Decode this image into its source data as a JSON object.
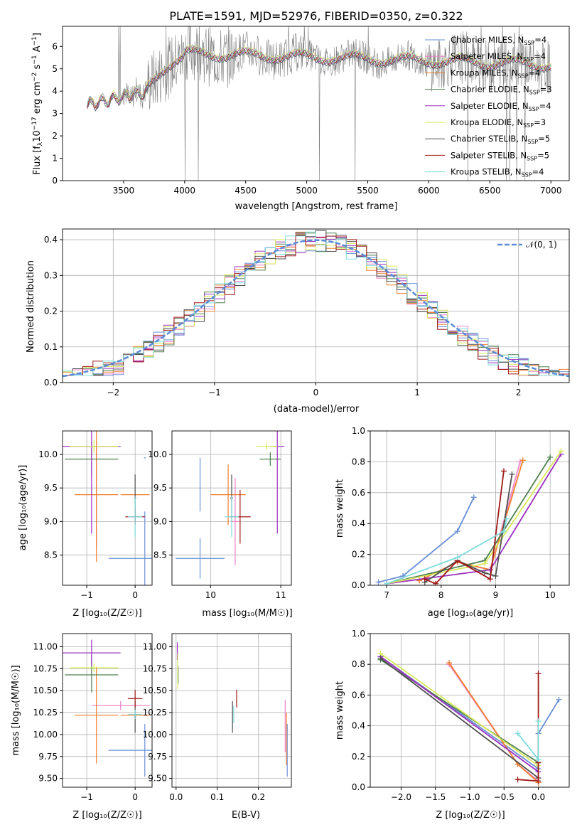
{
  "title": "PLATE=1591, MJD=52976, FIBERID=0350, z=0.322",
  "colors": {
    "Chabrier MILES": "#6a8fd6",
    "Salpeter MILES": "#ee82c8",
    "Kroupa MILES": "#f08030",
    "Chabrier ELODIE": "#4f7f4f",
    "Salpeter ELODIE": "#9b30c0",
    "Kroupa ELODIE": "#d8e85a",
    "Chabrier STELIB": "#505050",
    "Salpeter STELIB": "#a01818",
    "Kroupa STELIB": "#7fdcdc",
    "data": "#808080",
    "normal": "#5b8ad6"
  },
  "panels": {
    "spectrum": {
      "xlabel": "wavelength [Angstrom, rest frame]",
      "ylabel_pre": "Flux [f",
      "ylabel_sub": "λ",
      "ylabel_mid": "10",
      "ylabel_exp": "−17",
      "ylabel_post": " erg cm",
      "ylabel_exp2": "−2",
      "ylabel_s": " s",
      "ylabel_exp3": "−1",
      "ylabel_A": " A",
      "ylabel_exp4": "−1",
      "ylabel_end": "]",
      "legend": [
        {
          "imf": "Chabrier MILES",
          "n": "4"
        },
        {
          "imf": "Salpeter MILES",
          "n": "4"
        },
        {
          "imf": "Kroupa MILES",
          "n": "4"
        },
        {
          "imf": "Chabrier ELODIE",
          "n": "3"
        },
        {
          "imf": "Salpeter ELODIE",
          "n": "4"
        },
        {
          "imf": "Kroupa ELODIE",
          "n": "3"
        },
        {
          "imf": "Chabrier STELIB",
          "n": "5"
        },
        {
          "imf": "Salpeter STELIB",
          "n": "5"
        },
        {
          "imf": "Kroupa STELIB",
          "n": "4"
        }
      ],
      "legend_n_label": "N",
      "legend_n_sub": "SSP"
    },
    "residuals": {
      "xlabel": "(data-model)/error",
      "ylabel": "Normed distribution",
      "legend": "𝒩(0, 1)"
    },
    "age_vs_Z": {
      "xlabel": "Z [log₁₀(Z/Z☉)]",
      "ylabel": "age  [log₁₀(age/yr)]"
    },
    "age_vs_mass": {
      "xlabel": "mass [log₁₀(M/M☉)]"
    },
    "mw_vs_age": {
      "xlabel": "age  [log₁₀(age/yr)]",
      "ylabel": "mass weight"
    },
    "mass_vs_Z": {
      "xlabel": "Z [log₁₀(Z/Z☉)]",
      "ylabel": "mass [log₁₀(M/M☉)]"
    },
    "mass_vs_ebv": {
      "xlabel": "E(B-V)"
    },
    "mw_vs_Z": {
      "xlabel": "Z [log₁₀(Z/Z☉)]",
      "ylabel": "mass weight"
    }
  },
  "chart_data": [
    {
      "type": "line",
      "panel": "spectrum",
      "xlim": [
        3000,
        7150
      ],
      "ylim": [
        0,
        6.9
      ],
      "xticks": [
        3500,
        4000,
        4500,
        5000,
        5500,
        6000,
        6500,
        7000
      ],
      "yticks": [
        0,
        1,
        2,
        3,
        4,
        5,
        6
      ],
      "x_range_data": [
        3200,
        7000
      ],
      "grid": false,
      "legend_position": "right"
    },
    {
      "type": "line",
      "panel": "residuals",
      "xlim": [
        -2.5,
        2.5
      ],
      "ylim": [
        0,
        0.43
      ],
      "xticks": [
        -2,
        -1,
        0,
        1,
        2
      ],
      "yticks": [
        0.0,
        0.1,
        0.2,
        0.3,
        0.4
      ],
      "grid": true,
      "legend_position": "top-right",
      "gaussian": {
        "mean": 0,
        "sigma": 1
      }
    },
    {
      "type": "scatter",
      "panel": "age_vs_Z",
      "xlim": [
        -1.5,
        0.35
      ],
      "ylim": [
        8.05,
        10.35
      ],
      "xticks": [
        -1,
        0
      ],
      "yticks": [
        8.5,
        9.0,
        9.5,
        10.0
      ],
      "grid": true,
      "points": [
        {
          "name": "Chabrier MILES",
          "x": 0.2,
          "y": 8.45,
          "xerr": 0.75,
          "yerr": 0.7
        },
        {
          "name": "Chabrier MILES",
          "x": 0.2,
          "y": 9.95,
          "xerr": 0.02,
          "yerr": 0.0
        },
        {
          "name": "Salpeter MILES",
          "x": -0.8,
          "y": 9.4,
          "xerr": 0.05,
          "yerr": 0.8
        },
        {
          "name": "Kroupa MILES",
          "x": -0.8,
          "y": 9.4,
          "xerr": 0.45,
          "yerr": 1.0
        },
        {
          "name": "Kroupa MILES",
          "x": 0.0,
          "y": 9.4,
          "xerr": 0.3,
          "yerr": 0.0
        },
        {
          "name": "Chabrier ELODIE",
          "x": -0.9,
          "y": 9.93,
          "xerr": 0.55,
          "yerr": 0.25
        },
        {
          "name": "Salpeter ELODIE",
          "x": -0.9,
          "y": 10.12,
          "xerr": 0.6,
          "yerr": 1.3
        },
        {
          "name": "Kroupa ELODIE",
          "x": -0.85,
          "y": 10.12,
          "xerr": 0.5,
          "yerr": 0.1
        },
        {
          "name": "Chabrier STELIB",
          "x": 0.0,
          "y": 9.35,
          "xerr": 0.02,
          "yerr": 0.35
        },
        {
          "name": "Salpeter STELIB",
          "x": 0.0,
          "y": 9.07,
          "xerr": 0.2,
          "yerr": 0.12
        },
        {
          "name": "Kroupa STELIB",
          "x": 0.0,
          "y": 9.07,
          "xerr": 0.15,
          "yerr": 0.3
        }
      ]
    },
    {
      "type": "scatter",
      "panel": "age_vs_mass",
      "xlim": [
        9.45,
        11.15
      ],
      "ylim": [
        8.05,
        10.35
      ],
      "xticks": [
        10,
        11
      ],
      "yticks": [
        8.5,
        9.0,
        9.5,
        10.0
      ],
      "grid": true,
      "points": [
        {
          "name": "Chabrier MILES",
          "x": 9.85,
          "y": 8.45,
          "xerr": 0.35,
          "yerr": 0.3
        },
        {
          "name": "Chabrier MILES",
          "x": 9.85,
          "y": 9.55,
          "xerr": 0.0,
          "yerr": 0.4
        },
        {
          "name": "Salpeter MILES",
          "x": 10.35,
          "y": 9.0,
          "xerr": 0.05,
          "yerr": 0.65
        },
        {
          "name": "Kroupa MILES",
          "x": 10.25,
          "y": 9.4,
          "xerr": 0.25,
          "yerr": 0.45
        },
        {
          "name": "Chabrier ELODIE",
          "x": 10.85,
          "y": 9.93,
          "xerr": 0.15,
          "yerr": 0.1
        },
        {
          "name": "Salpeter ELODIE",
          "x": 10.95,
          "y": 10.12,
          "xerr": 0.1,
          "yerr": 1.3
        },
        {
          "name": "Kroupa ELODIE",
          "x": 10.8,
          "y": 10.12,
          "xerr": 0.15,
          "yerr": 0.05
        },
        {
          "name": "Chabrier STELIB",
          "x": 10.3,
          "y": 9.35,
          "xerr": 0.02,
          "yerr": 0.35
        },
        {
          "name": "Salpeter STELIB",
          "x": 10.42,
          "y": 9.07,
          "xerr": 0.15,
          "yerr": 0.4
        },
        {
          "name": "Kroupa STELIB",
          "x": 10.3,
          "y": 9.07,
          "xerr": 0.1,
          "yerr": 0.3
        }
      ]
    },
    {
      "type": "line",
      "panel": "mw_vs_age",
      "xlim": [
        6.7,
        10.35
      ],
      "ylim": [
        0,
        1.0
      ],
      "xticks": [
        7,
        8,
        9,
        10
      ],
      "yticks": [
        0.0,
        0.2,
        0.4,
        0.6,
        0.8,
        1.0
      ],
      "grid": true,
      "series": [
        {
          "name": "Chabrier MILES",
          "x": [
            6.85,
            7.3,
            8.3,
            8.6
          ],
          "y": [
            0.02,
            0.06,
            0.35,
            0.57
          ]
        },
        {
          "name": "Salpeter MILES",
          "x": [
            7.6,
            8.3,
            8.9,
            9.45
          ],
          "y": [
            0.03,
            0.15,
            0.1,
            0.8
          ]
        },
        {
          "name": "Kroupa MILES",
          "x": [
            7.6,
            8.3,
            8.9,
            9.5
          ],
          "y": [
            0.03,
            0.15,
            0.1,
            0.81
          ]
        },
        {
          "name": "Chabrier ELODIE",
          "x": [
            7.0,
            8.8,
            10.0
          ],
          "y": [
            0.01,
            0.16,
            0.83
          ]
        },
        {
          "name": "Salpeter ELODIE",
          "x": [
            7.0,
            8.9,
            10.2
          ],
          "y": [
            0.01,
            0.1,
            0.85
          ]
        },
        {
          "name": "Kroupa ELODIE",
          "x": [
            7.0,
            8.8,
            10.2
          ],
          "y": [
            0.01,
            0.14,
            0.87
          ]
        },
        {
          "name": "Chabrier STELIB",
          "x": [
            7.7,
            8.3,
            8.8,
            9.0,
            9.3
          ],
          "y": [
            0.02,
            0.16,
            0.08,
            0.06,
            0.72
          ]
        },
        {
          "name": "Salpeter STELIB",
          "x": [
            7.7,
            7.9,
            8.3,
            8.9,
            9.15
          ],
          "y": [
            0.04,
            0.01,
            0.16,
            0.04,
            0.74
          ]
        },
        {
          "name": "Kroupa STELIB",
          "x": [
            7.0,
            8.3,
            9.15,
            9.2
          ],
          "y": [
            0.01,
            0.18,
            0.35,
            0.43
          ]
        }
      ]
    },
    {
      "type": "scatter",
      "panel": "mass_vs_Z",
      "xlim": [
        -1.5,
        0.35
      ],
      "ylim": [
        9.4,
        11.15
      ],
      "xticks": [
        -1,
        0
      ],
      "yticks": [
        9.5,
        9.75,
        10.0,
        10.25,
        10.5,
        10.75,
        11.0
      ],
      "grid": true,
      "points": [
        {
          "name": "Chabrier MILES",
          "x": 0.2,
          "y": 9.82,
          "xerr": 0.75,
          "yerr": 0.3
        },
        {
          "name": "Salpeter MILES",
          "x": -0.3,
          "y": 10.33,
          "xerr": 0.6,
          "yerr": 0.05
        },
        {
          "name": "Kroupa MILES",
          "x": -0.8,
          "y": 10.22,
          "xerr": 0.45,
          "yerr": 0.55
        },
        {
          "name": "Kroupa MILES",
          "x": 0.0,
          "y": 10.22,
          "xerr": 0.3,
          "yerr": 0.0
        },
        {
          "name": "Chabrier ELODIE",
          "x": -0.9,
          "y": 10.68,
          "xerr": 0.55,
          "yerr": 0.2
        },
        {
          "name": "Salpeter ELODIE",
          "x": -0.9,
          "y": 10.93,
          "xerr": 0.6,
          "yerr": 0.15
        },
        {
          "name": "Kroupa ELODIE",
          "x": -0.85,
          "y": 10.76,
          "xerr": 0.5,
          "yerr": 0.05
        },
        {
          "name": "Chabrier STELIB",
          "x": 0.0,
          "y": 10.2,
          "xerr": 0.02,
          "yerr": 0.18
        },
        {
          "name": "Salpeter STELIB",
          "x": 0.0,
          "y": 10.41,
          "xerr": 0.15,
          "yerr": 0.1
        },
        {
          "name": "Kroupa STELIB",
          "x": 0.0,
          "y": 10.23,
          "xerr": 0.15,
          "yerr": 0.05
        }
      ]
    },
    {
      "type": "scatter",
      "panel": "mass_vs_ebv",
      "xlim": [
        -0.01,
        0.28
      ],
      "ylim": [
        9.4,
        11.15
      ],
      "xticks": [
        0.0,
        0.1,
        0.2
      ],
      "yticks": [
        9.5,
        9.75,
        10.0,
        10.25,
        10.5,
        10.75,
        11.0
      ],
      "grid": true,
      "points": [
        {
          "name": "Chabrier MILES",
          "x": 0.27,
          "y": 9.82,
          "xerr": 0,
          "yerr": 0.3
        },
        {
          "name": "Salpeter MILES",
          "x": 0.265,
          "y": 10.1,
          "xerr": 0,
          "yerr": 0.3
        },
        {
          "name": "Kroupa MILES",
          "x": 0.268,
          "y": 9.95,
          "xerr": 0,
          "yerr": 0.3
        },
        {
          "name": "Chabrier ELODIE",
          "x": 0.005,
          "y": 10.68,
          "xerr": 0,
          "yerr": 0.1
        },
        {
          "name": "Salpeter ELODIE",
          "x": 0.003,
          "y": 10.95,
          "xerr": 0,
          "yerr": 0.1
        },
        {
          "name": "Kroupa ELODIE",
          "x": 0.004,
          "y": 10.72,
          "xerr": 0,
          "yerr": 0.2
        },
        {
          "name": "Chabrier STELIB",
          "x": 0.137,
          "y": 10.2,
          "xerr": 0,
          "yerr": 0.18
        },
        {
          "name": "Salpeter STELIB",
          "x": 0.147,
          "y": 10.41,
          "xerr": 0,
          "yerr": 0.1
        },
        {
          "name": "Kroupa STELIB",
          "x": 0.14,
          "y": 10.23,
          "xerr": 0,
          "yerr": 0.1
        }
      ]
    },
    {
      "type": "line",
      "panel": "mw_vs_Z",
      "xlim": [
        -2.45,
        0.45
      ],
      "ylim": [
        0,
        1.0
      ],
      "xticks": [
        -2.0,
        -1.5,
        -1.0,
        -0.5,
        0.0
      ],
      "yticks": [
        0.0,
        0.2,
        0.4,
        0.6,
        0.8,
        1.0
      ],
      "grid": true,
      "series": [
        {
          "name": "Chabrier MILES",
          "x": [
            -2.3,
            0.0,
            0.0,
            0.3
          ],
          "y": [
            0.85,
            0.12,
            0.35,
            0.57
          ]
        },
        {
          "name": "Salpeter MILES",
          "x": [
            -1.3,
            -0.3,
            0.0
          ],
          "y": [
            0.8,
            0.15,
            0.04
          ]
        },
        {
          "name": "Kroupa MILES",
          "x": [
            -1.3,
            -0.3,
            0.0
          ],
          "y": [
            0.81,
            0.15,
            0.03
          ]
        },
        {
          "name": "Chabrier ELODIE",
          "x": [
            -2.3,
            0.0
          ],
          "y": [
            0.83,
            0.16
          ]
        },
        {
          "name": "Salpeter ELODIE",
          "x": [
            -2.3,
            0.0
          ],
          "y": [
            0.85,
            0.1
          ]
        },
        {
          "name": "Kroupa ELODIE",
          "x": [
            -2.3,
            0.0
          ],
          "y": [
            0.87,
            0.14
          ]
        },
        {
          "name": "Chabrier STELIB",
          "x": [
            -2.3,
            0.0,
            0.0
          ],
          "y": [
            0.84,
            0.06,
            0.16
          ]
        },
        {
          "name": "Salpeter STELIB",
          "x": [
            -0.3,
            0.0,
            0.0,
            0.0
          ],
          "y": [
            0.05,
            0.04,
            0.74,
            0.16
          ]
        },
        {
          "name": "Kroupa STELIB",
          "x": [
            -0.3,
            0.0,
            0.0
          ],
          "y": [
            0.35,
            0.18,
            0.43
          ]
        }
      ]
    }
  ]
}
